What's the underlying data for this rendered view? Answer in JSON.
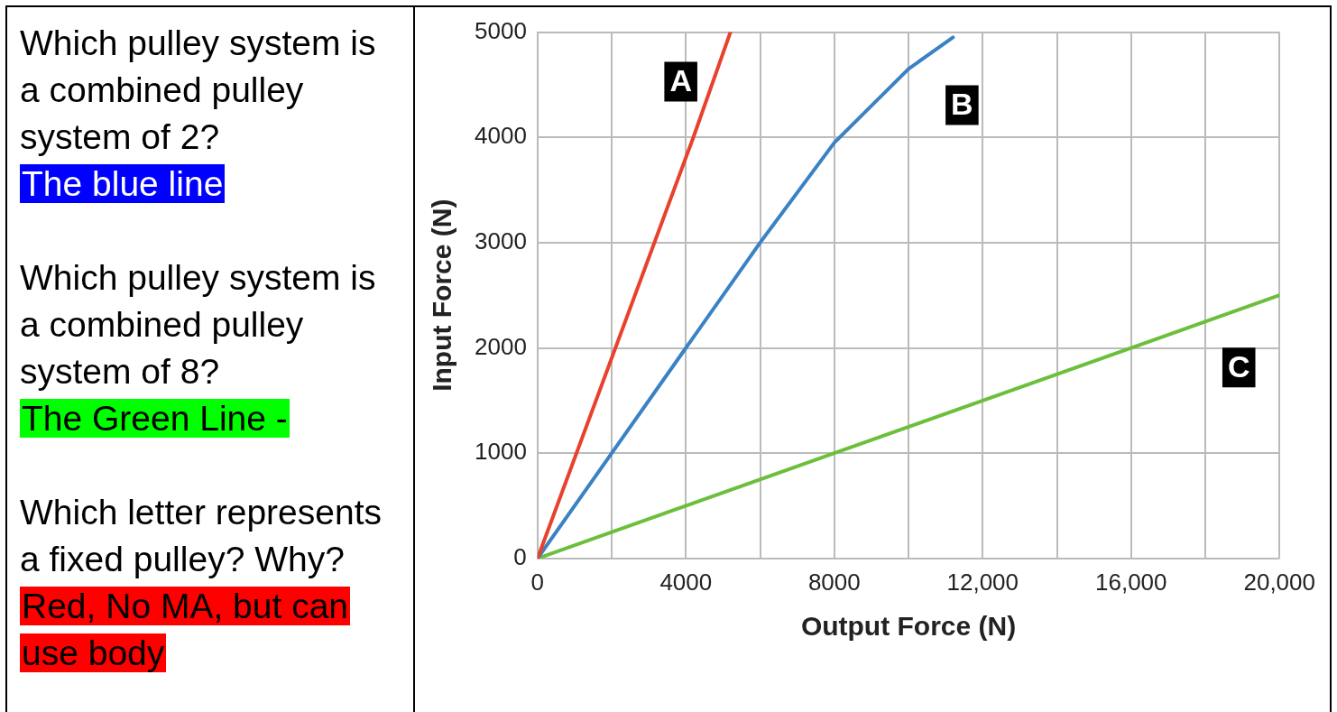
{
  "chart_data": [
    {
      "type": "other",
      "annotations": [
        "Which pulley system is a combined pulley system of 2?",
        "The blue line",
        "Which pulley system is a combined pulley system of 8?",
        "The Green Line -",
        "Which letter represents a fixed pulley? Why?",
        "Red, No MA, but can use body"
      ]
    },
    {
      "type": "line",
      "xlabel": "Output Force (N)",
      "ylabel": "Input Force (N)",
      "series": [
        {
          "color": "#e8412c",
          "x": [
            0,
            4200,
            5200
          ],
          "values": [
            0,
            4000,
            5000
          ]
        },
        {
          "color": "#3a82c4",
          "x": [
            0,
            2000,
            4000,
            6000,
            8000,
            10000,
            11200
          ],
          "values": [
            0,
            1000,
            2000,
            3000,
            3950,
            4650,
            4950
          ]
        },
        {
          "color": "#6cbf3c",
          "x": [
            0,
            8000,
            20000
          ],
          "values": [
            0,
            1000,
            2500
          ]
        }
      ],
      "xlim": [
        0,
        20000
      ],
      "ylim": [
        0,
        5000
      ],
      "xticks": [
        0,
        {
          "value": 2000,
          "label": null
        },
        4000,
        {
          "value": 6000,
          "label": null
        },
        8000,
        {
          "value": 10000,
          "label": null
        },
        {
          "value": 12000,
          "label": "12,000"
        },
        {
          "value": 14000,
          "label": null
        },
        {
          "value": 16000,
          "label": "16,000"
        },
        {
          "value": 18000,
          "label": null
        },
        {
          "value": 20000,
          "label": "20,000"
        }
      ],
      "yticks": [
        0,
        1000,
        2000,
        3000,
        4000,
        5000
      ],
      "grid": true,
      "marker": "none",
      "line_style": "solid",
      "annotations": [
        "A",
        "B",
        "C"
      ]
    }
  ]
}
